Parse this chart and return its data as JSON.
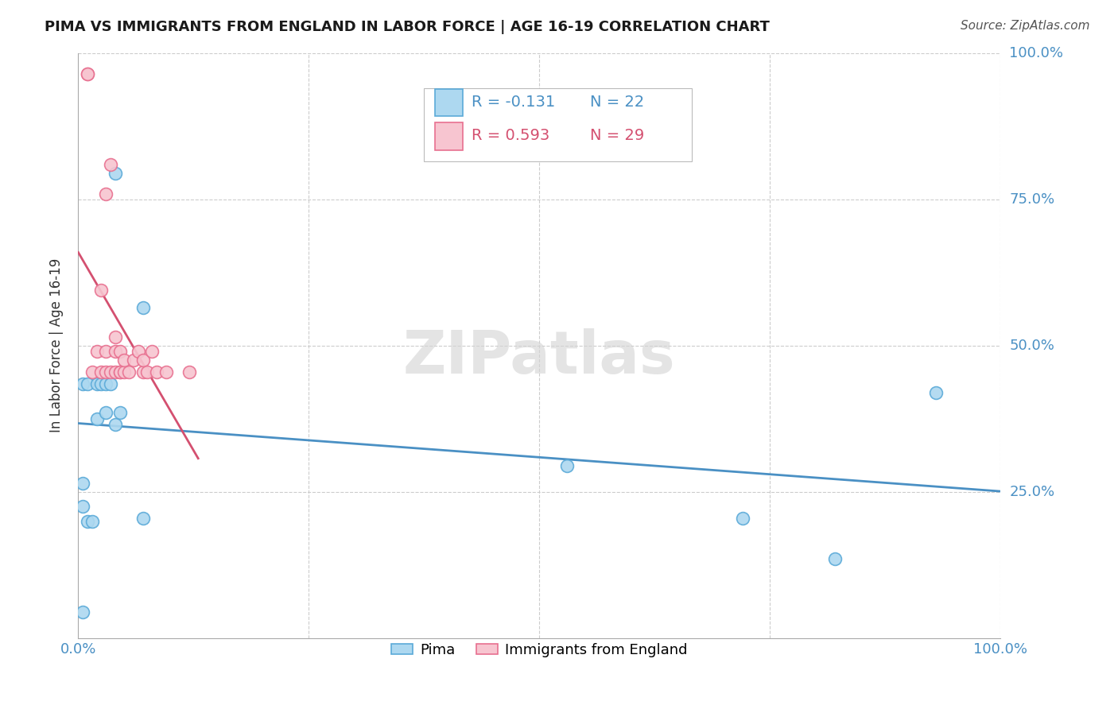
{
  "title": "PIMA VS IMMIGRANTS FROM ENGLAND IN LABOR FORCE | AGE 16-19 CORRELATION CHART",
  "source": "Source: ZipAtlas.com",
  "ylabel": "In Labor Force | Age 16-19",
  "xlim": [
    0.0,
    1.0
  ],
  "ylim": [
    0.0,
    1.0
  ],
  "pima_R": -0.131,
  "pima_N": 22,
  "england_R": 0.593,
  "england_N": 29,
  "pima_color": "#ADD8F0",
  "england_color": "#F7C5D0",
  "pima_edge_color": "#5BAAD8",
  "england_edge_color": "#E87090",
  "pima_line_color": "#4A90C4",
  "england_line_color": "#D45070",
  "text_color": "#4A90C4",
  "england_text_color": "#D45070",
  "background_color": "#FFFFFF",
  "grid_color": "#CCCCCC",
  "watermark": "ZIPatlas",
  "pima_x": [
    0.005,
    0.005,
    0.005,
    0.01,
    0.01,
    0.015,
    0.02,
    0.02,
    0.025,
    0.03,
    0.03,
    0.035,
    0.04,
    0.04,
    0.045,
    0.005,
    0.07,
    0.07,
    0.53,
    0.72,
    0.82,
    0.93
  ],
  "pima_y": [
    0.225,
    0.435,
    0.265,
    0.435,
    0.2,
    0.2,
    0.435,
    0.375,
    0.435,
    0.435,
    0.385,
    0.435,
    0.795,
    0.365,
    0.385,
    0.045,
    0.565,
    0.205,
    0.295,
    0.205,
    0.135,
    0.42
  ],
  "england_x": [
    0.01,
    0.01,
    0.015,
    0.02,
    0.025,
    0.025,
    0.03,
    0.03,
    0.03,
    0.035,
    0.035,
    0.04,
    0.04,
    0.04,
    0.045,
    0.045,
    0.045,
    0.05,
    0.05,
    0.055,
    0.06,
    0.065,
    0.07,
    0.07,
    0.075,
    0.08,
    0.085,
    0.095,
    0.12
  ],
  "england_y": [
    0.965,
    0.965,
    0.455,
    0.49,
    0.455,
    0.595,
    0.455,
    0.49,
    0.76,
    0.455,
    0.81,
    0.455,
    0.49,
    0.515,
    0.455,
    0.455,
    0.49,
    0.455,
    0.475,
    0.455,
    0.475,
    0.49,
    0.455,
    0.475,
    0.455,
    0.49,
    0.455,
    0.455,
    0.455
  ]
}
